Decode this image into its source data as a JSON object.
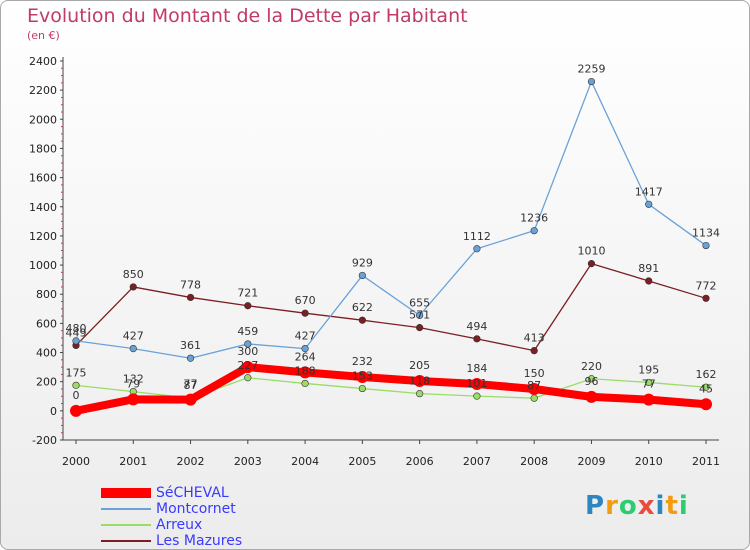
{
  "chart_data": {
    "type": "line",
    "title": "Evolution du Montant de la Dette par Habitant",
    "subtitle": "(en €)",
    "x": [
      "2000",
      "2001",
      "2002",
      "2003",
      "2004",
      "2005",
      "2006",
      "2007",
      "2008",
      "2009",
      "2010",
      "2011"
    ],
    "ylim": [
      -200,
      2400
    ],
    "yticks": [
      -200,
      0,
      200,
      400,
      600,
      800,
      1000,
      1200,
      1400,
      1600,
      1800,
      2000,
      2200,
      2400
    ],
    "grid": false,
    "legend_position": "bottom-left",
    "series": [
      {
        "name": "SéCHEVAL",
        "color": "#ff0000",
        "values": [
          0,
          79,
          77,
          300,
          264,
          232,
          205,
          184,
          150,
          96,
          77,
          45
        ]
      },
      {
        "name": "Montcornet",
        "color": "#6aa2d8",
        "values": [
          480,
          427,
          361,
          459,
          427,
          929,
          655,
          1112,
          1236,
          2259,
          1417,
          1134
        ]
      },
      {
        "name": "Arreux",
        "color": "#99dd66",
        "values": [
          175,
          132,
          87,
          227,
          188,
          153,
          118,
          101,
          87,
          220,
          195,
          162
        ]
      },
      {
        "name": "Les Mazures",
        "color": "#7a1f24",
        "values": [
          449,
          850,
          778,
          721,
          670,
          622,
          571,
          494,
          413,
          1010,
          891,
          772
        ]
      }
    ]
  },
  "logo": {
    "text": "Proxiti",
    "letters": [
      "P",
      "r",
      "o",
      "x",
      "i",
      "t",
      "i"
    ],
    "colors": [
      "#2e86c1",
      "#f39c12",
      "#2ecc71",
      "#e74c3c",
      "#2e86c1",
      "#f39c12",
      "#2ecc71"
    ]
  }
}
